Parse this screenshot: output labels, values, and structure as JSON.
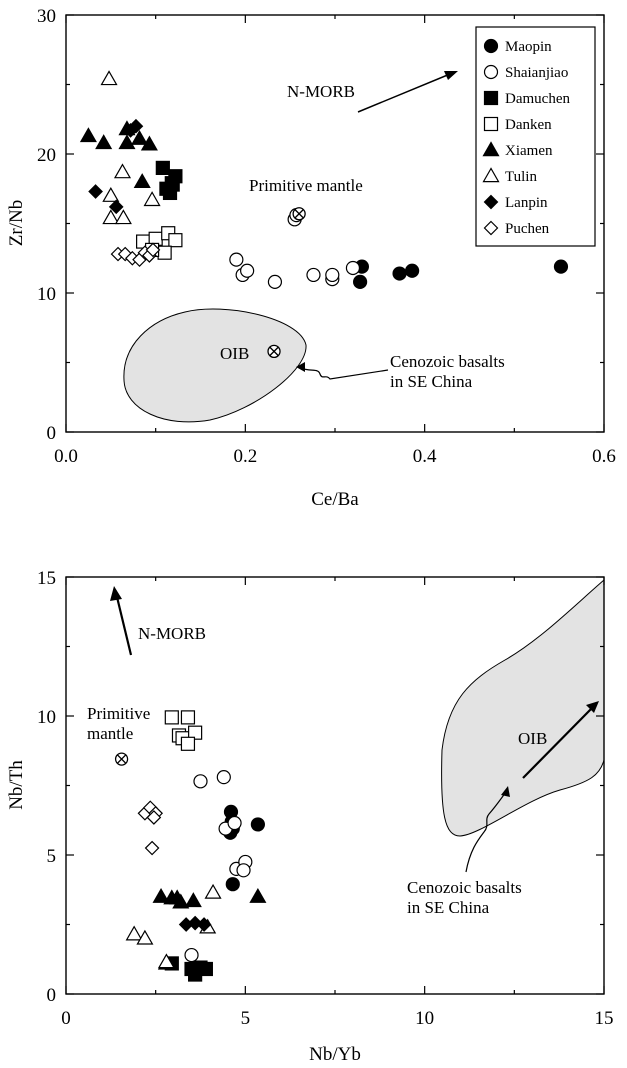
{
  "legend_entries": [
    {
      "name": "Maopin",
      "marker": "circle",
      "filled": true
    },
    {
      "name": "Shaianjiao",
      "marker": "circle",
      "filled": false
    },
    {
      "name": "Damuchen",
      "marker": "square",
      "filled": true
    },
    {
      "name": "Danken",
      "marker": "square",
      "filled": false
    },
    {
      "name": "Xiamen",
      "marker": "triangle",
      "filled": true
    },
    {
      "name": "Tulin",
      "marker": "triangle",
      "filled": false
    },
    {
      "name": "Lanpin",
      "marker": "diamond",
      "filled": true
    },
    {
      "name": "Puchen",
      "marker": "diamond",
      "filled": false
    }
  ],
  "chart_data": [
    {
      "type": "scatter",
      "title": "",
      "xlabel": "Ce/Ba",
      "ylabel": "Zr/Nb",
      "xlim": [
        0,
        0.6
      ],
      "ylim": [
        0,
        30
      ],
      "xticks": [
        "0.0",
        "0.2",
        "0.4",
        "0.6"
      ],
      "yticks": [
        "0",
        "10",
        "20",
        "30"
      ],
      "legend_position": "top-right",
      "series": [
        {
          "name": "Maopin",
          "marker": "circle",
          "filled": true,
          "points": [
            [
              0.33,
              11.9
            ],
            [
              0.328,
              10.8
            ],
            [
              0.372,
              11.4
            ],
            [
              0.386,
              11.6
            ],
            [
              0.552,
              11.9
            ]
          ]
        },
        {
          "name": "Shaianjiao",
          "marker": "circle",
          "filled": false,
          "points": [
            [
              0.19,
              12.4
            ],
            [
              0.197,
              11.3
            ],
            [
              0.202,
              11.6
            ],
            [
              0.233,
              10.8
            ],
            [
              0.276,
              11.3
            ],
            [
              0.297,
              11.0
            ],
            [
              0.297,
              11.3
            ],
            [
              0.32,
              11.8
            ],
            [
              0.255,
              15.3
            ],
            [
              0.257,
              15.6
            ]
          ]
        },
        {
          "name": "Damuchen",
          "marker": "square",
          "filled": true,
          "points": [
            [
              0.108,
              19.0
            ],
            [
              0.112,
              17.5
            ],
            [
              0.118,
              17.9
            ],
            [
              0.122,
              18.4
            ],
            [
              0.116,
              17.2
            ],
            [
              0.119,
              17.8
            ]
          ]
        },
        {
          "name": "Danken",
          "marker": "square",
          "filled": false,
          "points": [
            [
              0.086,
              13.7
            ],
            [
              0.1,
              13.9
            ],
            [
              0.114,
              14.3
            ],
            [
              0.122,
              13.8
            ],
            [
              0.11,
              12.9
            ],
            [
              0.096,
              13.1
            ]
          ]
        },
        {
          "name": "Xiamen",
          "marker": "triangle",
          "filled": true,
          "points": [
            [
              0.025,
              21.3
            ],
            [
              0.042,
              20.8
            ],
            [
              0.068,
              20.8
            ],
            [
              0.082,
              21.1
            ],
            [
              0.085,
              18.0
            ],
            [
              0.093,
              20.7
            ],
            [
              0.068,
              21.8
            ]
          ]
        },
        {
          "name": "Tulin",
          "marker": "triangle",
          "filled": false,
          "points": [
            [
              0.048,
              25.4
            ],
            [
              0.05,
              17.0
            ],
            [
              0.063,
              18.7
            ],
            [
              0.05,
              15.4
            ],
            [
              0.064,
              15.4
            ],
            [
              0.096,
              16.7
            ]
          ]
        },
        {
          "name": "Lanpin",
          "marker": "diamond",
          "filled": true,
          "points": [
            [
              0.033,
              17.3
            ],
            [
              0.056,
              16.2
            ],
            [
              0.072,
              21.7
            ],
            [
              0.078,
              22.0
            ]
          ]
        },
        {
          "name": "Puchen",
          "marker": "diamond",
          "filled": false,
          "points": [
            [
              0.058,
              12.8
            ],
            [
              0.066,
              12.8
            ],
            [
              0.074,
              12.5
            ],
            [
              0.082,
              12.4
            ],
            [
              0.088,
              12.9
            ],
            [
              0.093,
              12.7
            ],
            [
              0.097,
              13.1
            ]
          ]
        }
      ],
      "special_points": [
        {
          "label": "OIB",
          "x": 0.232,
          "y": 5.8,
          "marker": "circle-x"
        },
        {
          "label": "",
          "x": 0.26,
          "y": 15.7,
          "marker": "circle-x"
        }
      ],
      "annotations": {
        "nmorb": "N-MORB",
        "primitive_mantle": "Primitive mantle",
        "oib": "OIB",
        "cenozoic_line1": "Cenozoic basalts",
        "cenozoic_line2": "in SE China"
      },
      "shaded_field": "Cenozoic basalts in SE China",
      "field_color": "#e3e3e3"
    },
    {
      "type": "scatter",
      "title": "",
      "xlabel": "Nb/Yb",
      "ylabel": "Nb/Th",
      "xlim": [
        0,
        15
      ],
      "ylim": [
        0,
        15
      ],
      "xticks": [
        "0",
        "5",
        "10",
        "15"
      ],
      "yticks": [
        "0",
        "5",
        "10",
        "15"
      ],
      "series": [
        {
          "name": "Maopin",
          "marker": "circle",
          "filled": true,
          "points": [
            [
              4.6,
              6.55
            ],
            [
              4.62,
              6.2
            ],
            [
              4.65,
              5.95
            ],
            [
              4.58,
              5.8
            ],
            [
              5.35,
              6.1
            ],
            [
              4.65,
              3.95
            ]
          ]
        },
        {
          "name": "Shaianjiao",
          "marker": "circle",
          "filled": false,
          "points": [
            [
              3.75,
              7.65
            ],
            [
              4.4,
              7.8
            ],
            [
              4.45,
              5.95
            ],
            [
              4.7,
              6.15
            ],
            [
              4.75,
              4.5
            ],
            [
              5.0,
              4.75
            ],
            [
              4.95,
              4.45
            ],
            [
              3.5,
              1.4
            ]
          ]
        },
        {
          "name": "Damuchen",
          "marker": "square",
          "filled": true,
          "points": [
            [
              2.95,
              1.1
            ],
            [
              3.5,
              0.9
            ],
            [
              3.75,
              0.95
            ],
            [
              3.9,
              0.9
            ],
            [
              3.6,
              0.7
            ]
          ]
        },
        {
          "name": "Danken",
          "marker": "square",
          "filled": false,
          "points": [
            [
              2.95,
              9.95
            ],
            [
              3.4,
              9.95
            ],
            [
              3.15,
              9.3
            ],
            [
              3.25,
              9.2
            ],
            [
              3.6,
              9.4
            ],
            [
              3.4,
              9.0
            ]
          ]
        },
        {
          "name": "Xiamen",
          "marker": "triangle",
          "filled": true,
          "points": [
            [
              2.65,
              3.5
            ],
            [
              2.95,
              3.45
            ],
            [
              3.1,
              3.45
            ],
            [
              3.2,
              3.3
            ],
            [
              3.55,
              3.35
            ],
            [
              5.35,
              3.5
            ],
            [
              2.8,
              1.1
            ]
          ]
        },
        {
          "name": "Tulin",
          "marker": "triangle",
          "filled": false,
          "points": [
            [
              1.9,
              2.15
            ],
            [
              2.2,
              2.0
            ],
            [
              4.1,
              3.65
            ],
            [
              3.95,
              2.4
            ],
            [
              2.8,
              1.15
            ]
          ]
        },
        {
          "name": "Lanpin",
          "marker": "diamond",
          "filled": true,
          "points": [
            [
              3.35,
              2.5
            ],
            [
              3.6,
              2.55
            ],
            [
              3.85,
              2.5
            ],
            [
              3.55,
              0.8
            ],
            [
              3.75,
              0.85
            ]
          ]
        },
        {
          "name": "Puchen",
          "marker": "diamond",
          "filled": false,
          "points": [
            [
              2.2,
              6.5
            ],
            [
              2.35,
              6.7
            ],
            [
              2.5,
              6.5
            ],
            [
              2.45,
              6.35
            ],
            [
              2.4,
              5.25
            ]
          ]
        }
      ],
      "special_points": [
        {
          "label": "",
          "x": 1.55,
          "y": 8.45,
          "marker": "circle-x"
        }
      ],
      "annotations": {
        "nmorb": "N-MORB",
        "primitive_line1": "Primitive",
        "primitive_line2": "mantle",
        "oib": "OIB",
        "cenozoic_line1": "Cenozoic basalts",
        "cenozoic_line2": "in SE China"
      },
      "shaded_field": "Cenozoic basalts in SE China",
      "field_color": "#e3e3e3"
    }
  ]
}
